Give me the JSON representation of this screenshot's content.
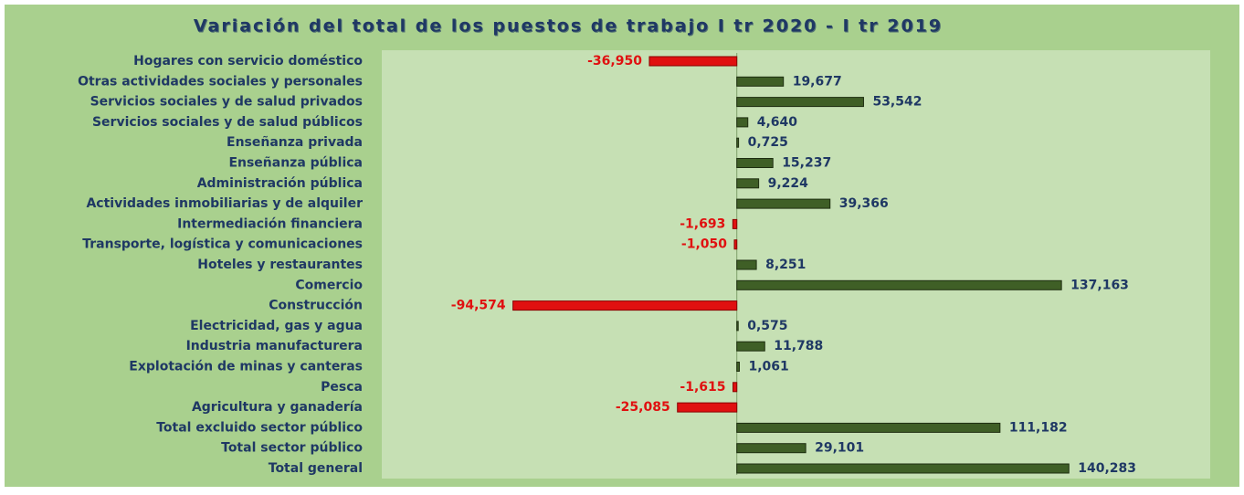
{
  "chart_data": {
    "type": "hbar",
    "title": "Variación del total de los puestos de trabajo I tr 2020 - I tr 2019",
    "categories": [
      "Hogares con servicio doméstico",
      "Otras actividades sociales y personales",
      "Servicios sociales y de salud privados",
      "Servicios sociales y de salud públicos",
      "Enseñanza privada",
      "Enseñanza pública",
      "Administración pública",
      "Actividades inmobiliarias y de alquiler",
      "Intermediación financiera",
      "Transporte, logística y comunicaciones",
      "Hoteles y restaurantes",
      "Comercio",
      "Construcción",
      "Electricidad, gas y agua",
      "Industria manufacturera",
      "Explotación de minas y canteras",
      "Pesca",
      "Agricultura y ganadería",
      "Total excluido sector público",
      "Total sector público",
      "Total general"
    ],
    "values": [
      -36.95,
      19.677,
      53.542,
      4.64,
      0.725,
      15.237,
      9.224,
      39.366,
      -1.693,
      -1.05,
      8.251,
      137.163,
      -94.574,
      0.575,
      11.788,
      1.061,
      -1.615,
      -25.085,
      111.182,
      29.101,
      140.283
    ],
    "value_labels": [
      "-36,950",
      "19,677",
      "53,542",
      "4,640",
      "0,725",
      "15,237",
      "9,224",
      "39,366",
      "-1,693",
      "-1,050",
      "8,251",
      "137,163",
      "-94,574",
      "0,575",
      "11,788",
      "1,061",
      "-1,615",
      "-25,085",
      "111,182",
      "29,101",
      "140,283"
    ],
    "color": "#3f5f26",
    "negative_color": "#e01010",
    "xlim": [
      -150,
      200
    ]
  }
}
